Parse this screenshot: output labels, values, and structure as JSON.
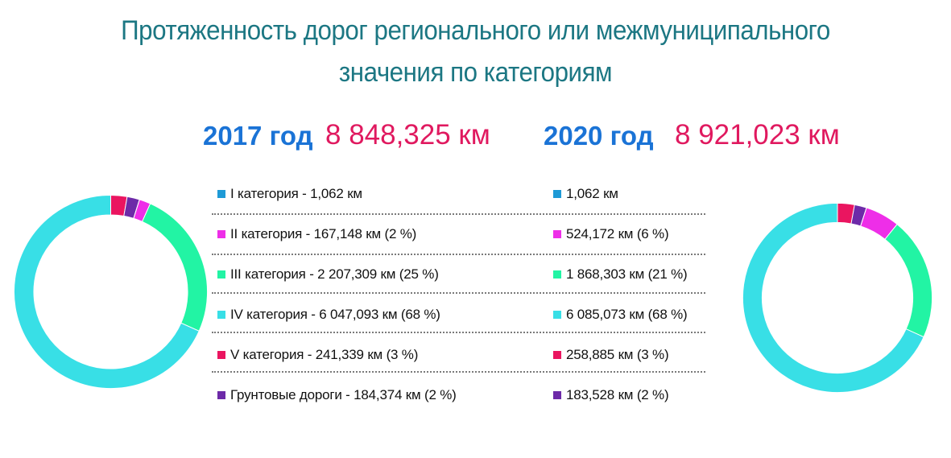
{
  "title_line1": "Протяженность дорог регионального или межмуниципального",
  "title_line2": "значения по категориям",
  "left": {
    "year": "2017 год",
    "total": "8 848,325 км"
  },
  "right": {
    "year": "2020 год",
    "total": "8 921,023 км"
  },
  "colors": {
    "cat1": "#1e9ad6",
    "cat2": "#ee2ee8",
    "cat3": "#22f4a4",
    "cat4": "#38dfe6",
    "cat5": "#ea1560",
    "dirt": "#6d2aa8"
  },
  "legend_2017": [
    {
      "text": "I категория - 1,062 км",
      "color": "cat1"
    },
    {
      "text": "II категория - 167,148 км  (2 %)",
      "color": "cat2"
    },
    {
      "text": "III категория - 2 207,309 км  (25 %)",
      "color": "cat3"
    },
    {
      "text": "IV категория - 6 047,093 км  (68 %)",
      "color": "cat4"
    },
    {
      "text": "V категория - 241,339 км  (3 %)",
      "color": "cat5"
    },
    {
      "text": "Грунтовые дороги - 184,374 км  (2 %)",
      "color": "dirt"
    }
  ],
  "legend_2020": [
    {
      "text": "1,062 км",
      "color": "cat1"
    },
    {
      "text": "524,172 км  (6 %)",
      "color": "cat2"
    },
    {
      "text": "1 868,303 км  (21 %)",
      "color": "cat3"
    },
    {
      "text": "6 085,073 км  (68 %)",
      "color": "cat4"
    },
    {
      "text": "258,885 км  (3 %)",
      "color": "cat5"
    },
    {
      "text": "183,528 км  (2 %)",
      "color": "dirt"
    }
  ],
  "chart_data": [
    {
      "type": "pie",
      "variant": "donut",
      "title": "2017 год",
      "total": "8 848,325 км",
      "unit": "км",
      "categories": [
        "V категория",
        "Грунтовые дороги",
        "I категория",
        "II категория",
        "III категория",
        "IV категория"
      ],
      "values": [
        241.339,
        184.374,
        1.062,
        167.148,
        2207.309,
        6047.093
      ],
      "colors": [
        "cat5",
        "dirt",
        "cat1",
        "cat2",
        "cat3",
        "cat4"
      ]
    },
    {
      "type": "pie",
      "variant": "donut",
      "title": "2020 год",
      "total": "8 921,023 км",
      "unit": "км",
      "categories": [
        "V категория",
        "Грунтовые дороги",
        "I категория",
        "II категория",
        "III категория",
        "IV категория"
      ],
      "values": [
        258.885,
        183.528,
        1.062,
        524.172,
        1868.303,
        6085.073
      ],
      "colors": [
        "cat5",
        "dirt",
        "cat1",
        "cat2",
        "cat3",
        "cat4"
      ]
    }
  ]
}
